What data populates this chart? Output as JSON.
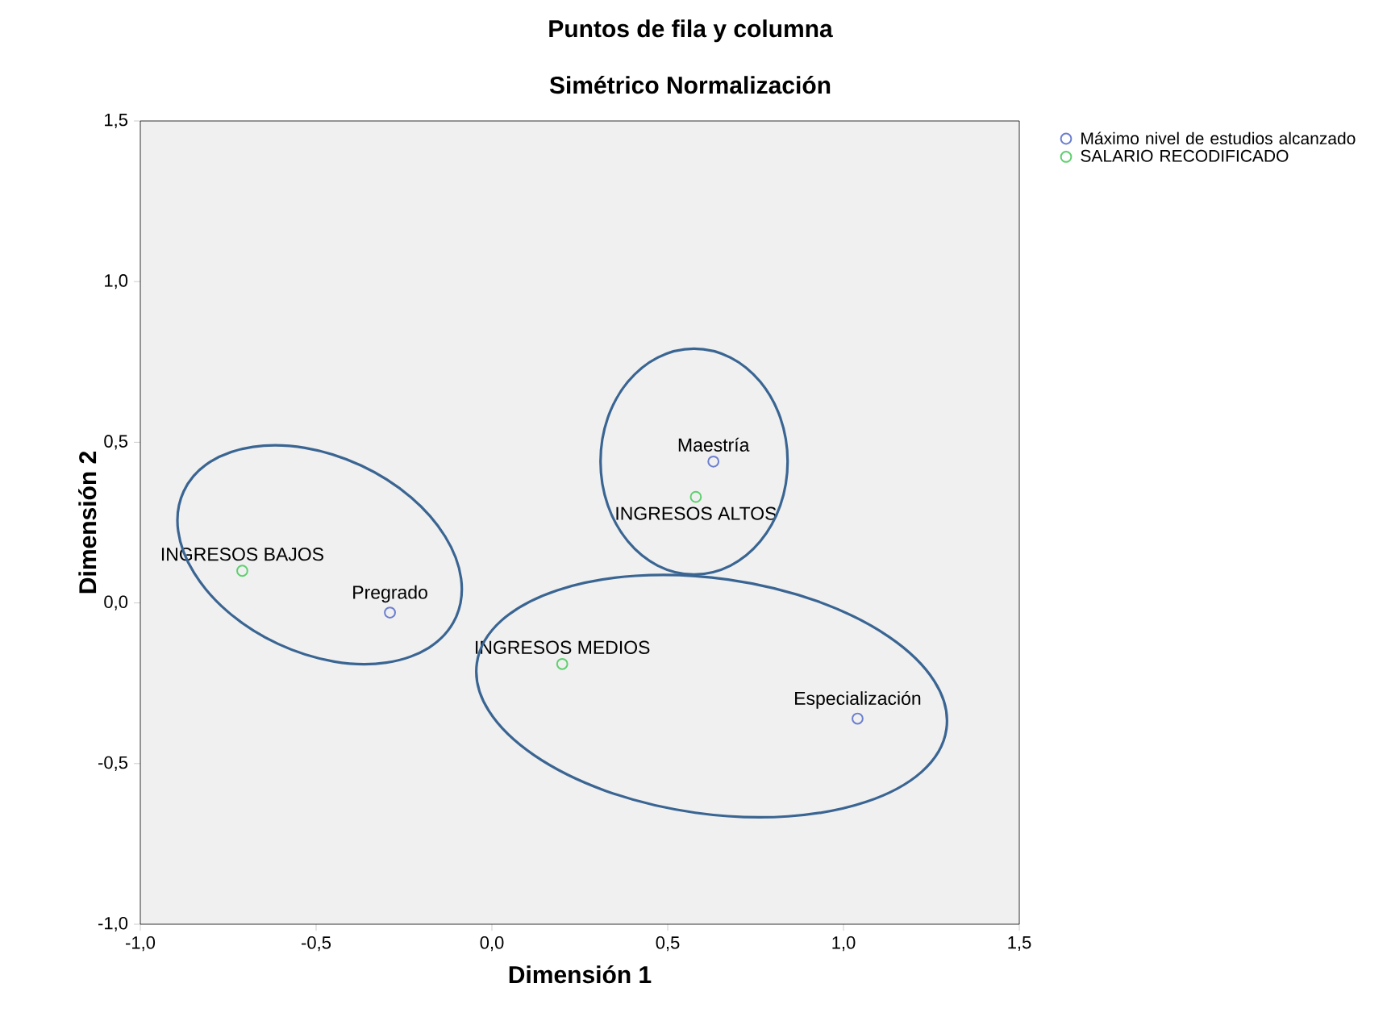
{
  "chart_data": {
    "type": "scatter",
    "title": "Puntos de fila y columna",
    "subtitle": "Simétrico Normalización",
    "xlabel": "Dimensión 1",
    "ylabel": "Dimensión 2",
    "series": [
      {
        "name": "Máximo nivel de estudios alcanzado",
        "color": "#6b7fd0",
        "x": [
          0.63,
          -0.29,
          1.04
        ],
        "values": [
          0.44,
          -0.03,
          -0.36
        ]
      },
      {
        "name": "SALARIO RECODIFICADO",
        "color": "#5fcf6f",
        "x": [
          0.58,
          -0.71,
          0.2
        ],
        "values": [
          0.33,
          0.1,
          -0.19
        ]
      }
    ],
    "annotations": [
      {
        "text": "Maestría",
        "x": 0.63,
        "y": 0.44
      },
      {
        "text": "Pregrado",
        "x": -0.29,
        "y": -0.03
      },
      {
        "text": "Especialización",
        "x": 1.04,
        "y": -0.36
      },
      {
        "text": "INGRESOS ALTOS",
        "x": 0.58,
        "y": 0.33
      },
      {
        "text": "INGRESOS BAJOS",
        "x": -0.71,
        "y": 0.1
      },
      {
        "text": "INGRESOS MEDIOS",
        "x": 0.2,
        "y": -0.19
      }
    ],
    "xlim": [
      -1.0,
      1.5
    ],
    "ylim": [
      -1.0,
      1.5
    ],
    "xticks": [
      {
        "value": -1.0,
        "label": "-1,0"
      },
      {
        "value": -0.5,
        "label": "-0,5"
      },
      {
        "value": 0.0,
        "label": "0,0"
      },
      {
        "value": 0.5,
        "label": "0,5"
      },
      {
        "value": 1.0,
        "label": "1,0"
      },
      {
        "value": 1.5,
        "label": "1,5"
      }
    ],
    "yticks": [
      {
        "value": -1.0,
        "label": "-1,0"
      },
      {
        "value": -0.5,
        "label": "-0,5"
      },
      {
        "value": 0.0,
        "label": "0,0"
      },
      {
        "value": 0.5,
        "label": "0,5"
      },
      {
        "value": 1.0,
        "label": "1,0"
      },
      {
        "value": 1.5,
        "label": "1,5"
      }
    ],
    "grid": false,
    "legend": "top right",
    "marker": "circle"
  }
}
